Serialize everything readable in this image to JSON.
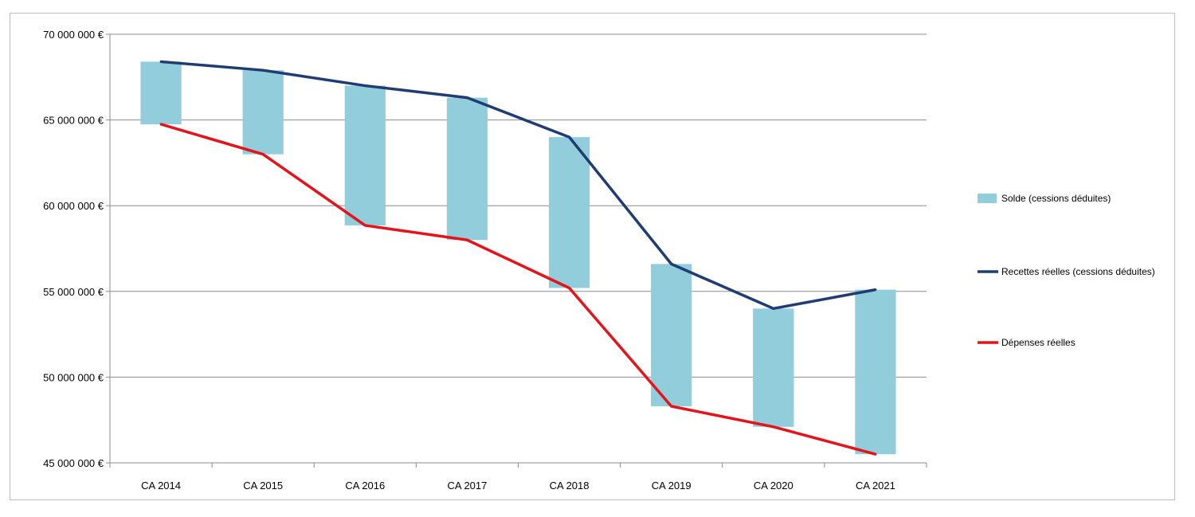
{
  "chart_data": {
    "type": "bar",
    "title": "",
    "xlabel": "",
    "ylabel": "",
    "categories": [
      "CA 2014",
      "CA 2015",
      "CA 2016",
      "CA 2017",
      "CA 2018",
      "CA 2019",
      "CA 2020",
      "CA 2021"
    ],
    "ylim": [
      45000000,
      70000000
    ],
    "y_ticks": [
      70000000,
      65000000,
      60000000,
      55000000,
      50000000,
      45000000
    ],
    "y_tick_labels": [
      "70 000 000 €",
      "65 000 000 €",
      "60 000 000 €",
      "55 000 000 €",
      "50 000 000 €",
      "45 000 000 €"
    ],
    "grid": true,
    "legend_position": "right",
    "series": [
      {
        "name": "Solde (cessions déduites)",
        "kind": "floating-bar",
        "color": "#92cddc",
        "low": [
          64750000,
          63000000,
          58850000,
          58000000,
          55200000,
          48300000,
          47100000,
          45500000
        ],
        "high": [
          68400000,
          67900000,
          67000000,
          66300000,
          64000000,
          56600000,
          54000000,
          55100000
        ]
      },
      {
        "name": "Recettes réelles (cessions déduites)",
        "kind": "line",
        "color": "#1f3d73",
        "values": [
          68400000,
          67900000,
          67000000,
          66300000,
          64000000,
          56600000,
          54000000,
          55100000
        ]
      },
      {
        "name": "Dépenses réelles",
        "kind": "line",
        "color": "#e3141b",
        "values": [
          64750000,
          63000000,
          58850000,
          58000000,
          55200000,
          48300000,
          47100000,
          45500000
        ]
      }
    ]
  }
}
